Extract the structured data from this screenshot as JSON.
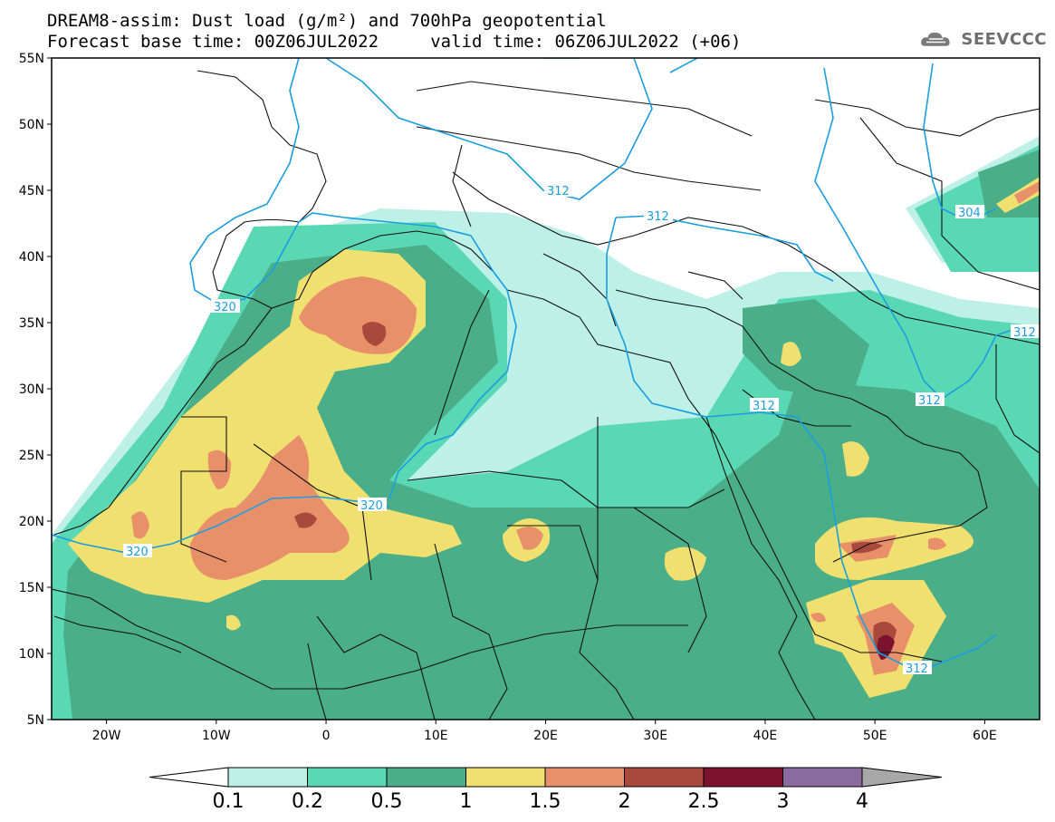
{
  "title": {
    "line1": "DREAM8-assim: Dust load (g/m²) and 700hPa geopotential",
    "line2": "Forecast base time: 00Z06JUL2022     valid time: 06Z06JUL2022 (+06)"
  },
  "logo": {
    "text": "SEEVCCC",
    "icon": "cloud-icon"
  },
  "axes": {
    "lat_labels": [
      "55N",
      "50N",
      "45N",
      "40N",
      "35N",
      "30N",
      "25N",
      "20N",
      "15N",
      "10N",
      "5N"
    ],
    "lat_values": [
      55,
      50,
      45,
      40,
      35,
      30,
      25,
      20,
      15,
      10,
      5
    ],
    "lon_labels": [
      "20W",
      "10W",
      "0",
      "10E",
      "20E",
      "30E",
      "40E",
      "50E",
      "60E"
    ],
    "lon_values": [
      -20,
      -10,
      0,
      10,
      20,
      30,
      40,
      50,
      60
    ],
    "lon_range": [
      -25,
      65
    ],
    "lat_range": [
      5,
      55
    ]
  },
  "colorbar": {
    "levels": [
      "0.1",
      "0.2",
      "0.5",
      "1",
      "1.5",
      "2",
      "2.5",
      "3",
      "4"
    ],
    "colors": [
      "#bdf0e6",
      "#5ad8b4",
      "#4aae88",
      "#f0e070",
      "#e8906a",
      "#a8493c",
      "#7a1230",
      "#8b6aa0"
    ],
    "over_color": "#a8a8a8",
    "under_color": "#ffffff"
  },
  "contours": [
    {
      "label": "320",
      "value": 320
    },
    {
      "label": "312",
      "value": 312
    },
    {
      "label": "304",
      "value": 304
    }
  ],
  "contour_color": "#1a9ee0",
  "border_color": "#111111"
}
